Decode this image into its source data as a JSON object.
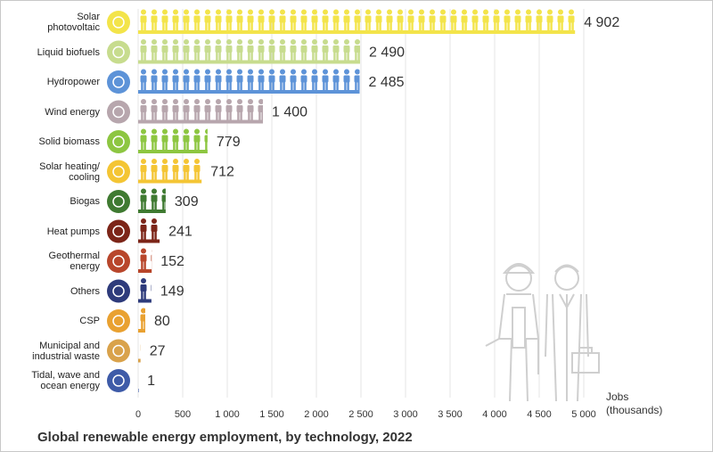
{
  "chart_data": {
    "type": "pictogram_bar",
    "title": "Global renewable energy employment, by technology, 2022",
    "x_label": "Jobs\n(thousands)",
    "categories": [
      "Solar\nphotovoltaic",
      "Liquid biofuels",
      "Hydropower",
      "Wind energy",
      "Solid biomass",
      "Solar heating/\ncooling",
      "Biogas",
      "Heat pumps",
      "Geothermal\nenergy",
      "Others",
      "CSP",
      "Municipal and\nindustrial waste",
      "Tidal, wave and\nocean energy"
    ],
    "values": [
      4902,
      2490,
      2485,
      1400,
      779,
      712,
      309,
      241,
      152,
      149,
      80,
      27,
      1
    ],
    "value_labels": [
      "4 902",
      "2 490",
      "2 485",
      "1 400",
      "779",
      "712",
      "309",
      "241",
      "152",
      "149",
      "80",
      "27",
      "1"
    ],
    "colors": [
      "#f3e44a",
      "#c7dc8e",
      "#5d93d8",
      "#b7a6ad",
      "#8dc641",
      "#f4c534",
      "#3f7a31",
      "#7c2518",
      "#b8462b",
      "#2e3b7b",
      "#e9a131",
      "#d9a24b",
      "#3e5ba8"
    ],
    "xlim": [
      0,
      5000
    ],
    "xticks": [
      0,
      500,
      {
        "value": 1000,
        "label": "1 000"
      },
      {
        "value": 1500,
        "label": "1 500"
      },
      {
        "value": 2000,
        "label": "2 000"
      },
      {
        "value": 2500,
        "label": "2 500"
      },
      {
        "value": 3000,
        "label": "3 000"
      },
      {
        "value": 3500,
        "label": "3 500"
      },
      {
        "value": 4000,
        "label": "4 000"
      },
      {
        "value": 4500,
        "label": "4 500"
      },
      {
        "value": 5000,
        "label": "5 000"
      }
    ],
    "grid": true
  }
}
